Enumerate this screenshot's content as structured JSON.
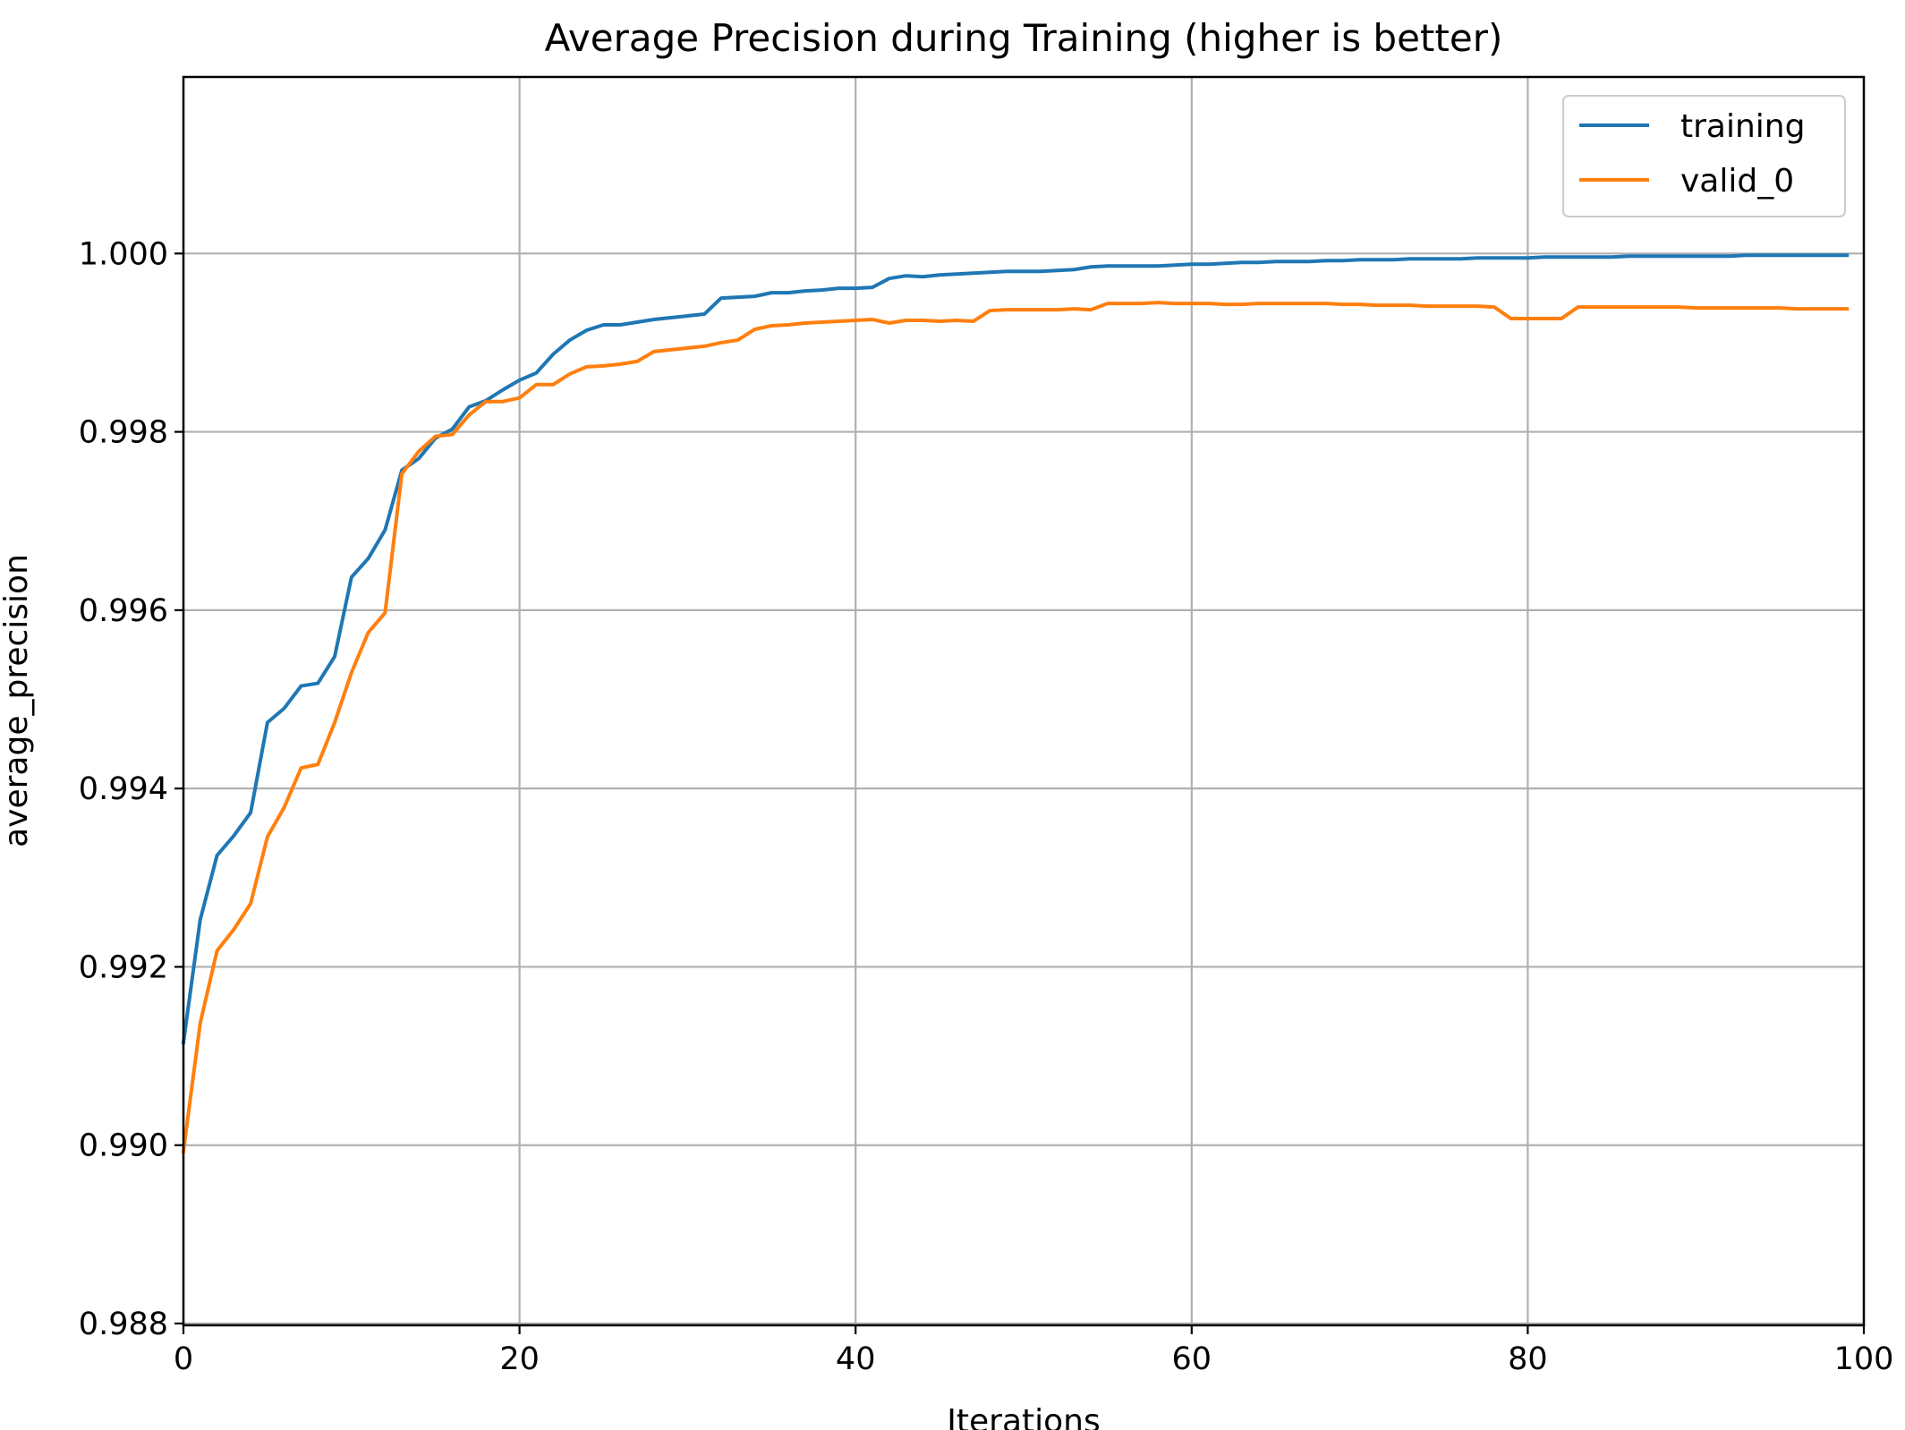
{
  "chart_data": {
    "type": "line",
    "title": "Average Precision during Training (higher is better)",
    "xlabel": "Iterations",
    "ylabel": "average_precision",
    "xlim": [
      0,
      100
    ],
    "ylim": [
      0.98798,
      1.00198
    ],
    "xticks": [
      0,
      20,
      40,
      60,
      80,
      100
    ],
    "xtick_labels": [
      "0",
      "20",
      "40",
      "60",
      "80",
      "100"
    ],
    "yticks": [
      0.988,
      0.99,
      0.992,
      0.994,
      0.996,
      0.998,
      1.0
    ],
    "ytick_labels": [
      "0.988",
      "0.990",
      "0.992",
      "0.994",
      "0.996",
      "0.998",
      "1.000"
    ],
    "grid": true,
    "legend_position": "top-right",
    "x": [
      0,
      1,
      2,
      3,
      4,
      5,
      6,
      7,
      8,
      9,
      10,
      11,
      12,
      13,
      14,
      15,
      16,
      17,
      18,
      19,
      20,
      21,
      22,
      23,
      24,
      25,
      26,
      27,
      28,
      29,
      30,
      31,
      32,
      33,
      34,
      35,
      36,
      37,
      38,
      39,
      40,
      41,
      42,
      43,
      44,
      45,
      46,
      47,
      48,
      49,
      50,
      51,
      52,
      53,
      54,
      55,
      56,
      57,
      58,
      59,
      60,
      61,
      62,
      63,
      64,
      65,
      66,
      67,
      68,
      69,
      70,
      71,
      72,
      73,
      74,
      75,
      76,
      77,
      78,
      79,
      80,
      81,
      82,
      83,
      84,
      85,
      86,
      87,
      88,
      89,
      90,
      91,
      92,
      93,
      94,
      95,
      96,
      97,
      98,
      99
    ],
    "series": [
      {
        "name": "training",
        "color": "#1f77b4",
        "values": [
          0.99115,
          0.99253,
          0.99325,
          0.99347,
          0.99373,
          0.99474,
          0.9949,
          0.99515,
          0.99518,
          0.99548,
          0.99637,
          0.99658,
          0.9969,
          0.99757,
          0.9977,
          0.99793,
          0.99803,
          0.99828,
          0.99835,
          0.99847,
          0.99858,
          0.99866,
          0.99887,
          0.99903,
          0.99914,
          0.9992,
          0.9992,
          0.99923,
          0.99926,
          0.99928,
          0.9993,
          0.99932,
          0.9995,
          0.99951,
          0.99952,
          0.99956,
          0.99956,
          0.99958,
          0.99959,
          0.99961,
          0.99961,
          0.99962,
          0.99972,
          0.99975,
          0.99974,
          0.99976,
          0.99977,
          0.99978,
          0.99979,
          0.9998,
          0.9998,
          0.9998,
          0.99981,
          0.99982,
          0.99985,
          0.99986,
          0.99986,
          0.99986,
          0.99986,
          0.99987,
          0.99988,
          0.99988,
          0.99989,
          0.9999,
          0.9999,
          0.99991,
          0.99991,
          0.99991,
          0.99992,
          0.99992,
          0.99993,
          0.99993,
          0.99993,
          0.99994,
          0.99994,
          0.99994,
          0.99994,
          0.99995,
          0.99995,
          0.99995,
          0.99995,
          0.99996,
          0.99996,
          0.99996,
          0.99996,
          0.99996,
          0.99997,
          0.99997,
          0.99997,
          0.99997,
          0.99997,
          0.99997,
          0.99997,
          0.99998,
          0.99998,
          0.99998,
          0.99998,
          0.99998,
          0.99998,
          0.99998
        ]
      },
      {
        "name": "valid_0",
        "color": "#ff7f0e",
        "values": [
          0.98993,
          0.99137,
          0.99218,
          0.99242,
          0.99271,
          0.99346,
          0.99379,
          0.99423,
          0.99427,
          0.99474,
          0.9953,
          0.99575,
          0.99597,
          0.99753,
          0.99778,
          0.99795,
          0.99797,
          0.99819,
          0.99834,
          0.99834,
          0.99838,
          0.99853,
          0.99853,
          0.99865,
          0.99873,
          0.99874,
          0.99876,
          0.99879,
          0.9989,
          0.99892,
          0.99894,
          0.99896,
          0.999,
          0.99903,
          0.99915,
          0.99919,
          0.9992,
          0.99922,
          0.99923,
          0.99924,
          0.99925,
          0.99926,
          0.99922,
          0.99925,
          0.99925,
          0.99924,
          0.99925,
          0.99924,
          0.99936,
          0.99937,
          0.99937,
          0.99937,
          0.99937,
          0.99938,
          0.99937,
          0.99944,
          0.99944,
          0.99944,
          0.99945,
          0.99944,
          0.99944,
          0.99944,
          0.99943,
          0.99943,
          0.99944,
          0.99944,
          0.99944,
          0.99944,
          0.99944,
          0.99943,
          0.99943,
          0.99942,
          0.99942,
          0.99942,
          0.99941,
          0.99941,
          0.99941,
          0.99941,
          0.9994,
          0.99927,
          0.99927,
          0.99927,
          0.99927,
          0.9994,
          0.9994,
          0.9994,
          0.9994,
          0.9994,
          0.9994,
          0.9994,
          0.99939,
          0.99939,
          0.99939,
          0.99939,
          0.99939,
          0.99939,
          0.99938,
          0.99938,
          0.99938,
          0.99938
        ]
      }
    ]
  }
}
